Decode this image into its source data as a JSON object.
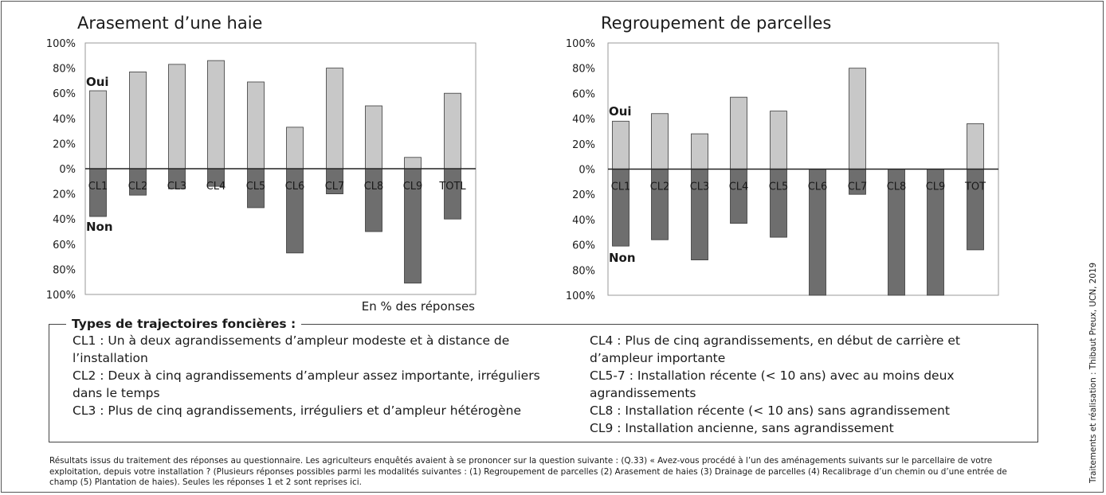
{
  "chart_data": [
    {
      "type": "bar",
      "title": "Arasement d’une haie",
      "categories": [
        "CL1",
        "CL2",
        "CL3",
        "CL4",
        "CL5",
        "CL6",
        "CL7",
        "CL8",
        "CL9",
        "TOTL"
      ],
      "series": [
        {
          "name": "Oui",
          "values": [
            62,
            77,
            83,
            86,
            69,
            33,
            80,
            50,
            9,
            60
          ]
        },
        {
          "name": "Non",
          "values": [
            38,
            21,
            16,
            14,
            31,
            67,
            20,
            50,
            91,
            40
          ]
        }
      ],
      "y_ticks": [
        "100%",
        "80%",
        "60%",
        "40%",
        "20%",
        "0%",
        "20%",
        "40%",
        "60%",
        "80%",
        "100%"
      ],
      "ylim": [
        -100,
        100
      ],
      "unit_note": "En % des réponses",
      "colors": {
        "Oui": "#c8c8c8",
        "Non": "#6e6e6e"
      }
    },
    {
      "type": "bar",
      "title": "Regroupement de parcelles",
      "categories": [
        "CL1",
        "CL2",
        "CL3",
        "CL4",
        "CL5",
        "CL6",
        "CL7",
        "CL8",
        "CL9",
        "TOT"
      ],
      "series": [
        {
          "name": "Oui",
          "values": [
            38,
            44,
            28,
            57,
            46,
            0,
            80,
            0,
            0,
            36
          ]
        },
        {
          "name": "Non",
          "values": [
            61,
            56,
            72,
            43,
            54,
            100,
            20,
            100,
            100,
            64
          ]
        }
      ],
      "y_ticks": [
        "100%",
        "80%",
        "60%",
        "40%",
        "20%",
        "0%",
        "20%",
        "40%",
        "60%",
        "80%",
        "100%"
      ],
      "ylim": [
        -100,
        100
      ],
      "colors": {
        "Oui": "#c8c8c8",
        "Non": "#6e6e6e"
      }
    }
  ],
  "legend": {
    "title": "Types de trajectoires foncières :",
    "left": [
      "CL1 : Un à deux agrandissements d’ampleur modeste et à distance de l’installation",
      "CL2 : Deux à cinq agrandissements d’ampleur assez importante, irréguliers dans le temps",
      "CL3 : Plus de cinq agrandissements, irréguliers et d’ampleur hétérogène"
    ],
    "right": [
      "CL4 : Plus de cinq agrandissements, en début de carrière et d’ampleur importante",
      "CL5-7 : Installation récente (< 10 ans) avec au moins deux agrandissements",
      "CL8 : Installation récente (< 10 ans) sans agrandissement",
      "CL9 : Installation ancienne, sans agrandissement"
    ]
  },
  "footnote": "Résultats issus du traitement des réponses au questionnaire. Les agriculteurs enquêtés avaient à se prononcer sur la question suivante : (Q.33) « Avez-vous procédé à l’un des aménagements suivants sur le parcellaire de votre exploitation, depuis votre installation ? (Plusieurs réponses possibles parmi les modalités suivantes : (1) Regroupement de parcelles (2) Arasement de haies (3) Drainage de parcelles (4) Recalibrage d’un chemin ou d’une entrée de champ (5) Plantation de haies). Seules les réponses 1 et 2 sont reprises ici.",
  "credit": "Traitements et réalisation : Thibaut Preux, UCN, 2019"
}
